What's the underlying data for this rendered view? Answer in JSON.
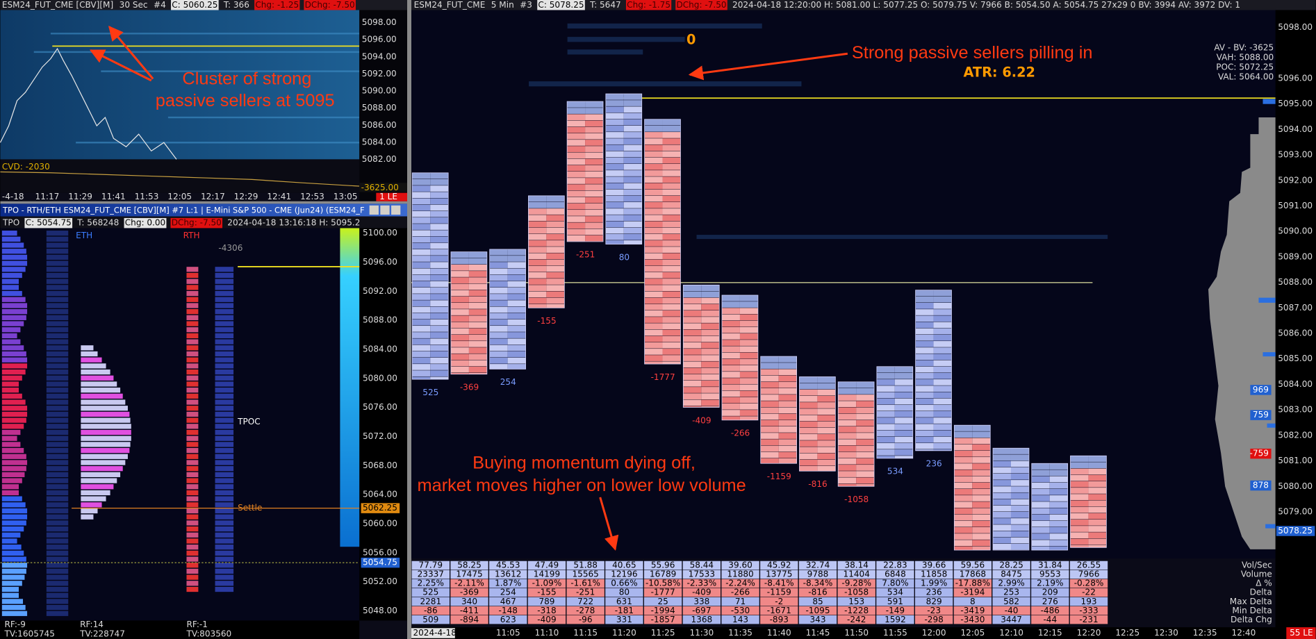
{
  "top_left": {
    "header": [
      {
        "text": "ESM24_FUT_CME [CBV][M]",
        "kind": "plain"
      },
      {
        "text": "30 Sec",
        "kind": "plain"
      },
      {
        "text": "#4",
        "kind": "plain"
      },
      {
        "text": "C: 5060.25",
        "kind": "white"
      },
      {
        "text": "T: 366",
        "kind": "plain"
      },
      {
        "text": "Chg: -1.25",
        "kind": "red"
      },
      {
        "text": "DChg: -7.50",
        "kind": "red"
      }
    ],
    "annotation": [
      "Cluster of strong",
      "passive sellers at 5095"
    ],
    "price_ticks": [
      "5098.00",
      "5096.00",
      "5094.00",
      "5092.00",
      "5090.00",
      "5088.00",
      "5086.00",
      "5084.00",
      "5082.00"
    ],
    "cvd": "CVD: -2030",
    "cvd_value": "-3625.00",
    "time_ticks": [
      "-4-18",
      "11:17",
      "11:29",
      "11:41",
      "11:53",
      "12:05",
      "12:17",
      "12:29",
      "12:41",
      "12:53",
      "13:05"
    ],
    "status": "1 LE"
  },
  "tpo": {
    "window_title": "TPO - RTH/ETH ESM24_FUT_CME [CBV][M] #7 L:1 | E-Mini S&P 500 - CME (Jun24) (ESM24_F",
    "header": [
      {
        "text": "TPO",
        "kind": "plain"
      },
      {
        "text": "C: 5054.75",
        "kind": "white"
      },
      {
        "text": "T: 568248",
        "kind": "plain"
      },
      {
        "text": "Chg: 0.00",
        "kind": "white"
      },
      {
        "text": "DChg: -7.50",
        "kind": "red"
      },
      {
        "text": "2024-04-18 13:16:18 H: 5095.2",
        "kind": "plain"
      }
    ],
    "session_labels": [
      "ETH",
      "RTH"
    ],
    "profile_delta": "-4306",
    "tpoc": "TPOC",
    "settle": "Settle",
    "price_ticks": [
      "5100.00",
      "5096.00",
      "5092.00",
      "5088.00",
      "5084.00",
      "5080.00",
      "5076.00",
      "5072.00",
      "5068.00",
      "5064.00",
      "5060.00",
      "5056.00",
      "5052.00",
      "5048.00"
    ],
    "settle_price": "5062.25",
    "last_price": "5054.75",
    "footer": [
      [
        "RF:-9",
        "TV:1605745"
      ],
      [
        "RF:14",
        "TV:228747"
      ],
      [
        "RF:-1",
        "TV:803560"
      ]
    ]
  },
  "main": {
    "header": [
      {
        "text": "ESM24_FUT_CME",
        "kind": "plain"
      },
      {
        "text": "5 Min",
        "kind": "plain"
      },
      {
        "text": "#3",
        "kind": "plain"
      },
      {
        "text": "C: 5078.25",
        "kind": "white"
      },
      {
        "text": "T: 5647",
        "kind": "plain"
      },
      {
        "text": "Chg: -1.75",
        "kind": "red"
      },
      {
        "text": "DChg: -7.50",
        "kind": "red"
      },
      {
        "text": "2024-04-18 12:20:00 H: 5081.00 L: 5077.25 O: 5079.75 V: 7966 B: 5054.50 A: 5054.75 27x29 0 BV: 3994 AV: 3972 DV: 1",
        "kind": "plain"
      }
    ],
    "annotation_top": "Strong passive sellers pilling in",
    "atr": "ATR: 6.22",
    "zero": "0",
    "annotation_bottom": [
      "Buying momentum dying off,",
      "market moves higher on lower low volume"
    ],
    "profile_stats": [
      "AV - BV: -3625",
      "VAH: 5088.00",
      "POC: 5072.25",
      "VAL: 5064.00"
    ],
    "profile_markers": [
      "969",
      "759",
      "-759",
      "878"
    ],
    "price_ticks": [
      "5098.00",
      "5096.00",
      "5095.00",
      "5094.00",
      "5093.00",
      "5092.00",
      "5091.00",
      "5090.00",
      "5089.00",
      "5088.00",
      "5087.00",
      "5086.00",
      "5085.00",
      "5084.00",
      "5083.00",
      "5082.00",
      "5081.00",
      "5080.00",
      "5079.00"
    ],
    "current_price": "5078.25",
    "bars": [
      {
        "high": 5092.3,
        "low": 5084.2
      },
      {
        "high": 5089.2,
        "low": 5084.4
      },
      {
        "high": 5089.3,
        "low": 5084.6
      },
      {
        "high": 5091.4,
        "low": 5087.0
      },
      {
        "high": 5095.1,
        "low": 5089.6
      },
      {
        "high": 5095.4,
        "low": 5089.5
      },
      {
        "high": 5094.4,
        "low": 5084.8
      },
      {
        "high": 5087.9,
        "low": 5083.1
      },
      {
        "high": 5087.5,
        "low": 5082.6
      },
      {
        "high": 5085.1,
        "low": 5080.9
      },
      {
        "high": 5084.3,
        "low": 5080.6
      },
      {
        "high": 5084.1,
        "low": 5080.0
      },
      {
        "high": 5084.7,
        "low": 5081.1
      },
      {
        "high": 5087.7,
        "low": 5081.4
      },
      {
        "high": 5082.4,
        "low": 5077.5
      },
      {
        "high": 5081.5,
        "low": 5077.5
      },
      {
        "high": 5080.9,
        "low": 5077.5
      },
      {
        "high": 5081.2,
        "low": 5077.6
      }
    ],
    "table": {
      "row_labels": [
        "Vol/Sec",
        "Volume",
        "Δ %",
        "Delta",
        "Max Delta",
        "Min Delta",
        "Delta Chg"
      ],
      "rows": [
        [
          "77.79",
          "58.25",
          "45.53",
          "47.49",
          "51.88",
          "40.65",
          "55.96",
          "58.44",
          "39.60",
          "45.92",
          "32.74",
          "38.14",
          "22.83",
          "39.66",
          "59.56",
          "28.25",
          "31.84",
          "26.55"
        ],
        [
          "23337",
          "17475",
          "13612",
          "14199",
          "15565",
          "12196",
          "16789",
          "17533",
          "11880",
          "13775",
          "9788",
          "11404",
          "6848",
          "11858",
          "17868",
          "8475",
          "9553",
          "7966"
        ],
        [
          "2.25%",
          "-2.11%",
          "1.87%",
          "-1.09%",
          "-1.61%",
          "0.66%",
          "-10.58%",
          "-2.33%",
          "-2.24%",
          "-8.41%",
          "-8.34%",
          "-9.28%",
          "7.80%",
          "1.99%",
          "-17.88%",
          "2.99%",
          "2.19%",
          "-0.28%"
        ],
        [
          "525",
          "-369",
          "254",
          "-155",
          "-251",
          "80",
          "-1777",
          "-409",
          "-266",
          "-1159",
          "-816",
          "-1058",
          "534",
          "236",
          "-3194",
          "253",
          "209",
          "-22"
        ],
        [
          "2281",
          "340",
          "467",
          "789",
          "722",
          "631",
          "25",
          "338",
          "71",
          "-2",
          "85",
          "153",
          "591",
          "829",
          "8",
          "582",
          "276",
          "193"
        ],
        [
          "-86",
          "-411",
          "-148",
          "-318",
          "-278",
          "-181",
          "-1994",
          "-697",
          "-530",
          "-1671",
          "-1095",
          "-1228",
          "-149",
          "-23",
          "-3419",
          "-40",
          "-486",
          "-333"
        ],
        [
          "509",
          "-894",
          "623",
          "-409",
          "-96",
          "331",
          "-1857",
          "1368",
          "143",
          "-893",
          "343",
          "-242",
          "1592",
          "-298",
          "-3430",
          "3447",
          "-44",
          "-231"
        ]
      ]
    },
    "date": "2024-4-18",
    "time_ticks": [
      "11:05",
      "11:10",
      "11:15",
      "11:20",
      "11:25",
      "11:30",
      "11:35",
      "11:40",
      "11:45",
      "11:50",
      "11:55",
      "12:00",
      "12:05",
      "12:10",
      "12:15",
      "12:20",
      "12:25",
      "12:30",
      "12:35",
      "12:40"
    ],
    "status": "55 LE"
  }
}
